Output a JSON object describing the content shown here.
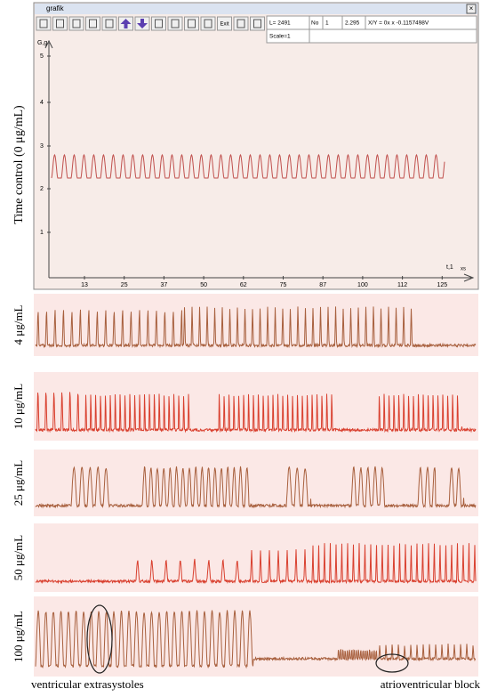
{
  "window": {
    "title": "grafik",
    "exit_button": "Exit",
    "status": {
      "length": "L= 2491",
      "no_label": "No",
      "no_value": "1",
      "reading": "2.295",
      "formula": "X/Y = 0x x -0.1157498V",
      "scale": "Scale=1"
    }
  },
  "plot": {
    "y_axis_label": "G,g",
    "y_ticks": [
      "5",
      "4",
      "3",
      "2",
      "1"
    ],
    "x_ticks": [
      "13",
      "25",
      "37",
      "50",
      "62",
      "75",
      "87",
      "100",
      "112",
      "125"
    ],
    "x_axis_label": "t,1",
    "x_unit": "xs",
    "panel_label": "Time control (0 μg/mL)"
  },
  "panels": [
    {
      "label": "4 μg/mL"
    },
    {
      "label": "10 μg/mL"
    },
    {
      "label": "25 μg/mL"
    },
    {
      "label": "50 μg/mL"
    },
    {
      "label": "100 μg/mL"
    }
  ],
  "annotations": {
    "left": "ventricular extrasystoles",
    "right": "atrioventricular block"
  }
}
